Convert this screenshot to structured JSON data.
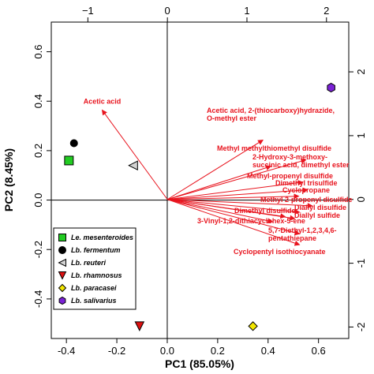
{
  "chart_data": {
    "type": "biplot",
    "xlabel": "PC1 (85.05%)",
    "ylabel": "PC2 (8.45%)",
    "xlim": [
      -0.46,
      0.72
    ],
    "ylim": [
      -0.56,
      0.72
    ],
    "x_ticks": [
      -0.4,
      -0.2,
      0.0,
      0.2,
      0.4,
      0.6
    ],
    "x_tick_labels": [
      "-0.4",
      "-0.2",
      "0.0",
      "0.2",
      "0.4",
      "0.6"
    ],
    "y_ticks": [
      -0.4,
      -0.2,
      0.0,
      0.2,
      0.4,
      0.6
    ],
    "y_tick_labels": [
      "-0.4",
      "-0.2",
      "0.0",
      "0.2",
      "0.4",
      "0.6"
    ],
    "top_ticks": [
      -1,
      0,
      1,
      2
    ],
    "top_tick_labels": [
      "−1",
      "0",
      "1",
      "2"
    ],
    "top_axis_range": [
      -1.46,
      2.28
    ],
    "right_ticks": [
      -2,
      -1,
      0,
      1,
      2
    ],
    "right_tick_labels": [
      "-2",
      "-1",
      "0",
      "1",
      "2"
    ],
    "right_axis_range": [
      -2.18,
      2.78
    ],
    "zero_lines": true,
    "legend_position": "bottom-left",
    "samples": [
      {
        "name": "Le. mesenteroides",
        "x": -0.39,
        "y": 0.16,
        "marker": "square",
        "color": "#22cc22"
      },
      {
        "name": "Lb. fermentum",
        "x": -0.37,
        "y": 0.23,
        "marker": "circle",
        "color": "#000000"
      },
      {
        "name": "Lb. reuteri",
        "x": -0.135,
        "y": 0.14,
        "marker": "triangle-left",
        "color": "#d3d3d3"
      },
      {
        "name": "Lb. rhamnosus",
        "x": -0.11,
        "y": -0.51,
        "marker": "triangle-down",
        "color": "#dd1111"
      },
      {
        "name": "Lb. paracasei",
        "x": 0.34,
        "y": -0.51,
        "marker": "diamond",
        "color": "#f2e600"
      },
      {
        "name": "Lb. salivarius",
        "x": 0.65,
        "y": 0.455,
        "marker": "hexagon",
        "color": "#7b22d6"
      }
    ],
    "loadings_scale_note": "loadings are in top/right axis units",
    "loadings": [
      {
        "label": "Acetic acid",
        "x": -0.82,
        "y": 1.4
      },
      {
        "label": "Acetic acid, 2-(thiocarboxy)hydrazide, O-methyl ester",
        "x": 1.2,
        "y": 0.93
      },
      {
        "label": "Methyl methylthiomethyl disulfide",
        "x": 1.74,
        "y": 0.62
      },
      {
        "label": "2-Hydroxy-3-methoxy-succinic acid, dimethyl ester",
        "x": 1.3,
        "y": 0.52
      },
      {
        "label": "Methyl-propenyl disulfide",
        "x": 1.7,
        "y": 0.27
      },
      {
        "label": "Dimethyl trisulfide",
        "x": 1.76,
        "y": 0.15
      },
      {
        "label": "Cyclopropane",
        "x": 1.65,
        "y": 0.05
      },
      {
        "label": "Methyl 2-propenyl disulfide",
        "x": 1.82,
        "y": -0.1
      },
      {
        "label": "Diallyl disulfide",
        "x": 1.66,
        "y": -0.2
      },
      {
        "label": "Dimethyl disulfide",
        "x": 1.48,
        "y": -0.27
      },
      {
        "label": "Diallyl sulfide",
        "x": 1.6,
        "y": -0.3
      },
      {
        "label": "3-Vinyl-1,2-dithiacyclohex-5-ene",
        "x": 1.32,
        "y": -0.35
      },
      {
        "label": "5,7-Diethyl-1,2,3,4,6-pentathiepane",
        "x": 1.66,
        "y": -0.54
      },
      {
        "label": "Cyclopentyl isothiocyanate",
        "x": 1.66,
        "y": -0.71
      }
    ]
  },
  "legend": {
    "items": [
      {
        "label": "Le. mesenteroides",
        "marker": "square",
        "color": "#22cc22"
      },
      {
        "label": "Lb. fermentum",
        "marker": "circle",
        "color": "#000000"
      },
      {
        "label": "Lb. reuteri",
        "marker": "triangle-left",
        "color": "#d3d3d3"
      },
      {
        "label": "Lb. rhamnosus",
        "marker": "triangle-down",
        "color": "#dd1111"
      },
      {
        "label": "Lb. paracasei",
        "marker": "diamond",
        "color": "#f2e600"
      },
      {
        "label": "Lb. salivarius",
        "marker": "hexagon",
        "color": "#7b22d6"
      }
    ]
  },
  "colors": {
    "arrow": "#e8141e",
    "axis": "#000000"
  }
}
